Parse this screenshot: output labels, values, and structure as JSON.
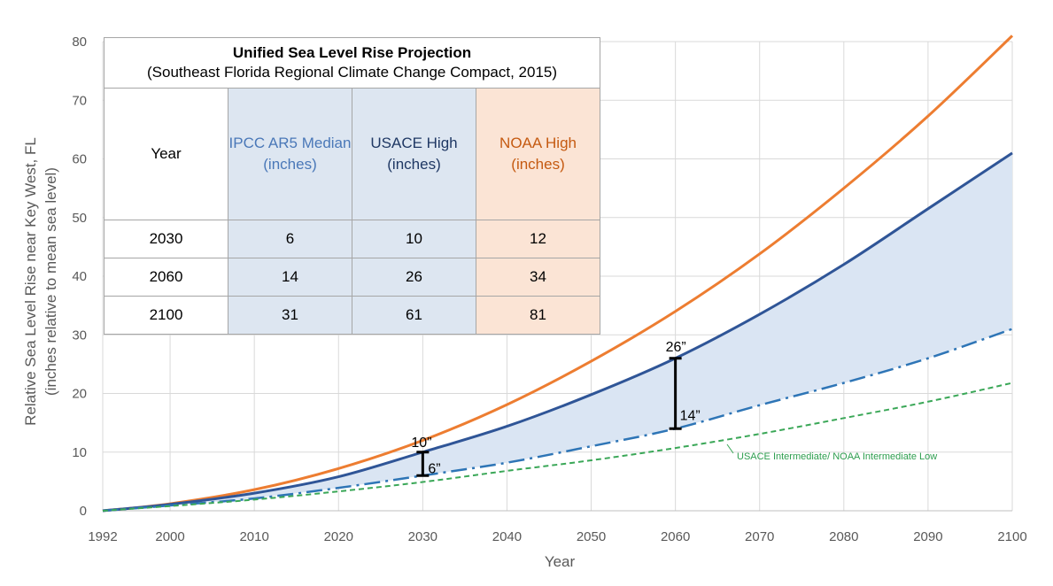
{
  "chart_data": {
    "type": "line",
    "xlabel": "Year",
    "ylabel": "Relative Sea Level Rise near Key West, FL",
    "ylabel2": "(inches relative to mean sea level)",
    "xlim": [
      1992,
      2100
    ],
    "ylim": [
      0,
      80
    ],
    "x_ticks": [
      1992,
      2000,
      2010,
      2020,
      2030,
      2040,
      2050,
      2060,
      2070,
      2080,
      2090,
      2100
    ],
    "y_ticks": [
      0,
      10,
      20,
      30,
      40,
      50,
      60,
      70,
      80
    ],
    "grid": true,
    "x": [
      1992,
      2000,
      2010,
      2020,
      2030,
      2040,
      2050,
      2060,
      2070,
      2080,
      2090,
      2100
    ],
    "series": [
      {
        "key": "noaa_high",
        "color": "#ed7d31",
        "dash": "solid",
        "values": [
          0,
          1.2,
          3.6,
          7.2,
          12,
          18.1,
          25.5,
          34,
          43.8,
          55,
          67.3,
          81
        ]
      },
      {
        "key": "usace_high",
        "color": "#2f5597",
        "dash": "solid",
        "values": [
          0,
          1.1,
          3.0,
          5.8,
          10,
          14.4,
          19.8,
          26,
          33.5,
          42,
          51.5,
          61
        ]
      },
      {
        "key": "ipcc_median",
        "color": "#2e75b6",
        "dash": "dashdot",
        "values": [
          0,
          0.9,
          2.1,
          3.9,
          6,
          8.2,
          11,
          14,
          18,
          21.8,
          26,
          31
        ]
      },
      {
        "key": "usace_intermediate",
        "name": "USACE Intermediate/ NOAA Intermediate Low",
        "color": "#3aa757",
        "dash": "dashed",
        "values": [
          0,
          0.8,
          1.9,
          3.3,
          4.9,
          6.8,
          8.6,
          10.7,
          13.1,
          15.8,
          18.6,
          21.8
        ]
      }
    ],
    "shaded_band": {
      "between": [
        "usace_high",
        "ipcc_median"
      ],
      "color": "#dae5f3"
    },
    "annotations": [
      {
        "text": "10”",
        "x": 2030,
        "y": 10
      },
      {
        "text": "6”",
        "x": 2030,
        "y": 6
      },
      {
        "text": "26”",
        "x": 2060,
        "y": 26
      },
      {
        "text": "14”",
        "x": 2060,
        "y": 14
      }
    ],
    "range_bars": [
      {
        "x": 2030,
        "y_low": 6,
        "y_high": 10
      },
      {
        "x": 2060,
        "y_low": 14,
        "y_high": 26
      }
    ]
  },
  "table": {
    "title": "Unified Sea Level Rise Projection",
    "subtitle": "(Southeast Florida Regional Climate Change Compact, 2015)",
    "headers": [
      "Year",
      "IPCC AR5 Median (inches)",
      "USACE High (inches)",
      "NOAA High (inches)"
    ],
    "rows": [
      [
        "2030",
        "6",
        "10",
        "12"
      ],
      [
        "2060",
        "14",
        "26",
        "34"
      ],
      [
        "2100",
        "31",
        "61",
        "81"
      ]
    ]
  }
}
